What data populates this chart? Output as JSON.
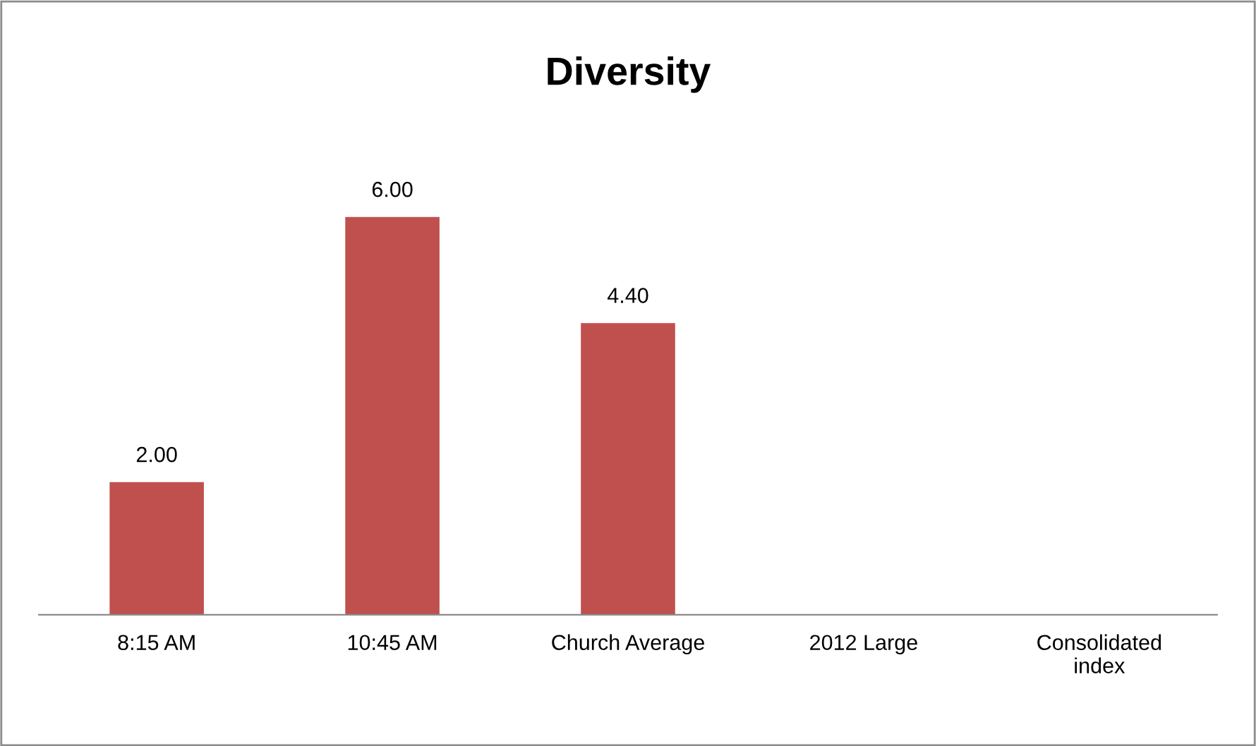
{
  "chart_data": {
    "type": "bar",
    "title": "Diversity",
    "categories": [
      "8:15 AM",
      "10:45 AM",
      "Church Average",
      "2012 Large",
      "Consolidated\nindex"
    ],
    "values": [
      2.0,
      6.0,
      4.4,
      null,
      null
    ],
    "value_labels": [
      "2.00",
      "6.00",
      "4.40",
      null,
      null
    ],
    "color": "#c0504d",
    "grid": false,
    "legend": false
  }
}
